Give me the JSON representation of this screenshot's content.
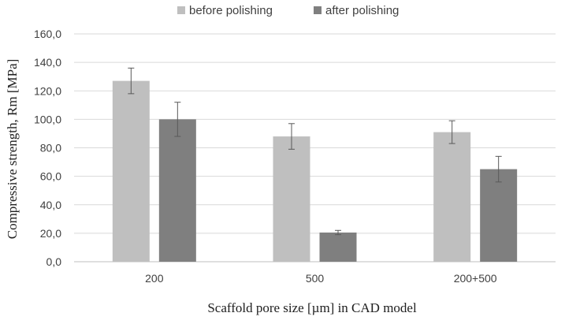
{
  "chart_data": {
    "type": "bar",
    "title": "",
    "xlabel": "Scaffold pore size [µm] in CAD model",
    "ylabel": "Compressive strength, Rm [MPa]",
    "categories": [
      "200",
      "500",
      "200+500"
    ],
    "series": [
      {
        "name": "before polishing",
        "color": "#bfbfbf",
        "values": [
          127.0,
          88.0,
          91.0
        ],
        "errors": [
          9.0,
          9.0,
          8.0
        ]
      },
      {
        "name": "after polishing",
        "color": "#7f7f7f",
        "values": [
          100.0,
          20.5,
          65.0
        ],
        "errors": [
          12.0,
          1.5,
          9.0
        ]
      }
    ],
    "ylim": [
      0,
      160
    ],
    "yticks": [
      "0,0",
      "20,0",
      "40,0",
      "60,0",
      "80,0",
      "100,0",
      "120,0",
      "140,0",
      "160,0"
    ],
    "grid": true,
    "legend_position": "top"
  }
}
